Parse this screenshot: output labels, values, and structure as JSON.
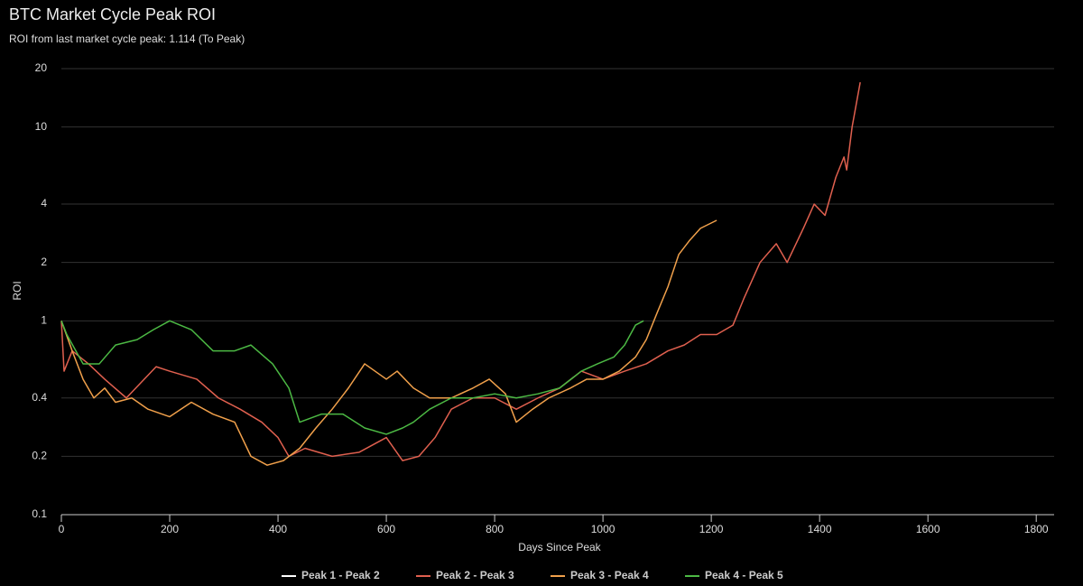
{
  "chart_data": {
    "type": "line",
    "title": "BTC Market Cycle Peak ROI",
    "subtitle": "ROI from last market cycle peak: 1.114 (To Peak)",
    "x_label": "Days Since Peak",
    "y_label": "ROI",
    "y_log": true,
    "grid": true,
    "legend": "bottom",
    "xlim": [
      0,
      1833
    ],
    "xticks": [
      0,
      200,
      400,
      600,
      800,
      1000,
      1200,
      1400,
      1600,
      1800
    ],
    "ylim": [
      0.1,
      20
    ],
    "yticks": [
      0.1,
      0.2,
      0.4,
      1,
      2,
      4,
      10,
      20
    ],
    "series": [
      {
        "name": "Peak 1 - Peak 2",
        "color": "#ffffff",
        "x": [],
        "values": []
      },
      {
        "name": "Peak 2 - Peak 3",
        "color": "#e0604f",
        "x": [
          0,
          5,
          20,
          50,
          80,
          120,
          175,
          200,
          250,
          290,
          330,
          370,
          400,
          420,
          450,
          500,
          550,
          600,
          630,
          660,
          690,
          720,
          760,
          800,
          840,
          880,
          920,
          960,
          1000,
          1040,
          1080,
          1120,
          1150,
          1180,
          1210,
          1240,
          1260,
          1290,
          1320,
          1340,
          1370,
          1390,
          1410,
          1430,
          1445,
          1450,
          1460,
          1475
        ],
        "values": [
          1,
          0.55,
          0.7,
          0.6,
          0.5,
          0.4,
          0.58,
          0.55,
          0.5,
          0.4,
          0.35,
          0.3,
          0.25,
          0.2,
          0.22,
          0.2,
          0.21,
          0.25,
          0.19,
          0.2,
          0.25,
          0.35,
          0.4,
          0.4,
          0.35,
          0.4,
          0.45,
          0.55,
          0.5,
          0.55,
          0.6,
          0.7,
          0.75,
          0.85,
          0.85,
          0.95,
          1.3,
          2.0,
          2.5,
          2.0,
          3.0,
          4.0,
          3.5,
          5.5,
          7,
          6,
          10,
          17
        ]
      },
      {
        "name": "Peak 3 - Peak 4",
        "color": "#f0a04b",
        "x": [
          0,
          20,
          40,
          60,
          80,
          100,
          130,
          160,
          200,
          240,
          280,
          320,
          350,
          380,
          410,
          440,
          470,
          500,
          530,
          560,
          600,
          620,
          650,
          680,
          720,
          760,
          790,
          820,
          840,
          870,
          900,
          940,
          970,
          1000,
          1030,
          1060,
          1080,
          1100,
          1120,
          1140,
          1160,
          1180,
          1210
        ],
        "values": [
          1,
          0.7,
          0.5,
          0.4,
          0.45,
          0.38,
          0.4,
          0.35,
          0.32,
          0.38,
          0.33,
          0.3,
          0.2,
          0.18,
          0.19,
          0.22,
          0.28,
          0.35,
          0.45,
          0.6,
          0.5,
          0.55,
          0.45,
          0.4,
          0.4,
          0.45,
          0.5,
          0.42,
          0.3,
          0.35,
          0.4,
          0.45,
          0.5,
          0.5,
          0.55,
          0.65,
          0.8,
          1.1,
          1.5,
          2.2,
          2.6,
          3.0,
          3.3
        ]
      },
      {
        "name": "Peak 4 - Peak 5",
        "color": "#4cb944",
        "x": [
          0,
          10,
          40,
          70,
          100,
          140,
          170,
          200,
          240,
          280,
          320,
          350,
          390,
          420,
          440,
          480,
          520,
          560,
          600,
          630,
          650,
          680,
          720,
          760,
          800,
          840,
          880,
          920,
          960,
          990,
          1020,
          1040,
          1060,
          1075
        ],
        "values": [
          1,
          0.85,
          0.6,
          0.6,
          0.75,
          0.8,
          0.9,
          1.0,
          0.9,
          0.7,
          0.7,
          0.75,
          0.6,
          0.45,
          0.3,
          0.33,
          0.33,
          0.28,
          0.26,
          0.28,
          0.3,
          0.35,
          0.4,
          0.4,
          0.42,
          0.4,
          0.42,
          0.45,
          0.55,
          0.6,
          0.65,
          0.75,
          0.95,
          1.0
        ]
      }
    ]
  }
}
